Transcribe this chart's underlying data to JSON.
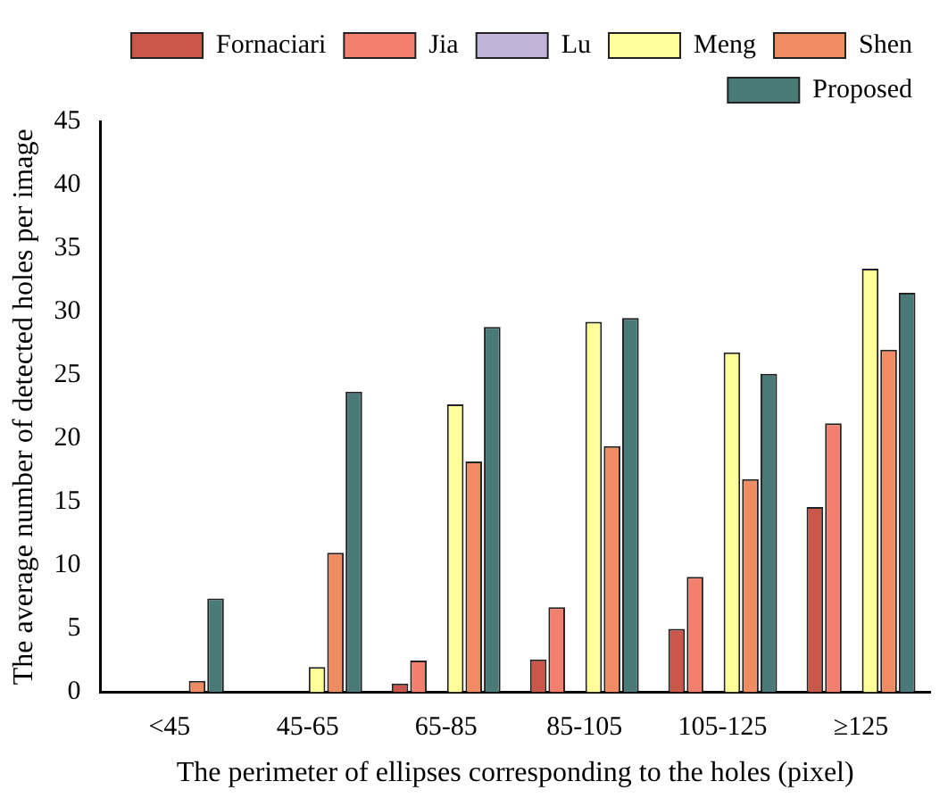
{
  "chart_data": {
    "type": "bar",
    "xlabel": "The perimeter of ellipses corresponding to the holes (pixel)",
    "ylabel": "The average number of detected holes per image",
    "categories": [
      "<45",
      "45-65",
      "65-85",
      "85-105",
      "105-125",
      "≥125"
    ],
    "series": [
      {
        "name": "Fornaciari",
        "color": "#c9574a",
        "values": [
          0,
          0,
          0.7,
          2.6,
          5.0,
          14.6
        ]
      },
      {
        "name": "Jia",
        "color": "#f47f6e",
        "values": [
          0,
          0,
          2.5,
          6.7,
          9.1,
          21.2
        ]
      },
      {
        "name": "Lu",
        "color": "#c2b3d8",
        "values": [
          0,
          0,
          0,
          0,
          0,
          0
        ]
      },
      {
        "name": "Meng",
        "color": "#ffff99",
        "values": [
          0,
          2.0,
          22.7,
          29.2,
          26.8,
          33.4
        ]
      },
      {
        "name": "Shen",
        "color": "#f08c62",
        "values": [
          0.9,
          11.0,
          18.2,
          19.4,
          16.8,
          27.0
        ]
      },
      {
        "name": "Proposed",
        "color": "#4a7a78",
        "values": [
          7.4,
          23.7,
          28.8,
          29.5,
          25.1,
          31.5
        ]
      }
    ],
    "ylim": [
      0,
      45
    ],
    "yticks": [
      0,
      5,
      10,
      15,
      20,
      25,
      30,
      35,
      40,
      45
    ],
    "grid": false,
    "legend": "top"
  }
}
